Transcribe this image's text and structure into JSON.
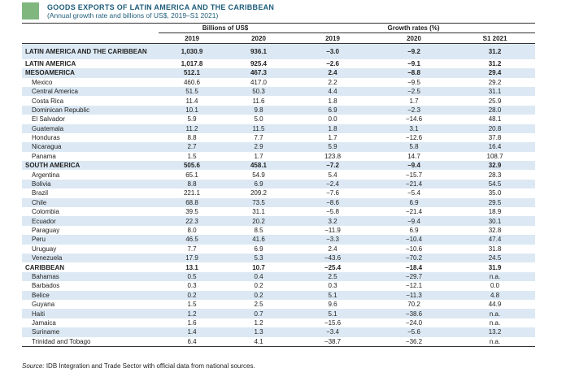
{
  "header": {
    "title": "GOODS EXPORTS OF LATIN AMERICA AND THE CARIBBEAN",
    "subtitle": "(Annual growth rate and billions of US$, 2019–S1 2021)"
  },
  "table": {
    "column_groups": [
      "Billions of US$",
      "Growth rates (%)"
    ],
    "columns": [
      "2019",
      "2020",
      "2019",
      "2020",
      "S1 2021"
    ],
    "rows": [
      {
        "cells": [
          "LATIN AMERICA AND THE CARIBBEAN",
          "1,030.9",
          "936.1",
          "−3.0",
          "−9.2",
          "31.2"
        ]
      },
      {
        "cells": [
          "LATIN AMERICA",
          "1,017.8",
          "925.4",
          "−2.6",
          "−9.1",
          "31.2"
        ]
      },
      {
        "cells": [
          "MESOAMERICA",
          "512.1",
          "467.3",
          "2.4",
          "−8.8",
          "29.4"
        ],
        "rows": [
          [
            "Mexico",
            "460.6",
            "417.0",
            "2.2",
            "−9.5",
            "29.2"
          ],
          [
            "Central America",
            "51.5",
            "50.3",
            "4.4",
            "−2.5",
            "31.1"
          ],
          [
            "Costa Rica",
            "11.4",
            "11.6",
            "1.8",
            "1.7",
            "25.9"
          ],
          [
            "Dominican Republic",
            "10.1",
            "9.8",
            "6.9",
            "−2.3",
            "28.0"
          ],
          [
            "El Salvador",
            "5.9",
            "5.0",
            "0.0",
            "−14.6",
            "48.1"
          ],
          [
            "Guatemala",
            "11.2",
            "11.5",
            "1.8",
            "3.1",
            "20.8"
          ],
          [
            "Honduras",
            "8.8",
            "7.7",
            "1.7",
            "−12.6",
            "37.8"
          ],
          [
            "Nicaragua",
            "2.7",
            "2.9",
            "5.9",
            "5.8",
            "16.4"
          ],
          [
            "Panama",
            "1.5",
            "1.7",
            "123.8",
            "14.7",
            "108.7"
          ]
        ]
      },
      {
        "cells": [
          "SOUTH AMERICA",
          "505.6",
          "458.1",
          "−7.2",
          "−9.4",
          "32.9"
        ],
        "rows": [
          [
            "Argentina",
            "65.1",
            "54.9",
            "5.4",
            "−15.7",
            "28.3"
          ],
          [
            "Bolivia",
            "8.8",
            "6.9",
            "−2.4",
            "−21.4",
            "54.5"
          ],
          [
            "Brazil",
            "221.1",
            "209.2",
            "−7.6",
            "−5.4",
            "35.0"
          ],
          [
            "Chile",
            "68.8",
            "73.5",
            "−8.6",
            "6.9",
            "29.5"
          ],
          [
            "Colombia",
            "39.5",
            "31.1",
            "−5.8",
            "−21.4",
            "18.9"
          ],
          [
            "Ecuador",
            "22.3",
            "20.2",
            "3.2",
            "−9.4",
            "30.1"
          ],
          [
            "Paraguay",
            "8.0",
            "8.5",
            "−11.9",
            "6.9",
            "32.8"
          ],
          [
            "Peru",
            "46.5",
            "41.6",
            "−3.3",
            "−10.4",
            "47.4"
          ],
          [
            "Uruguay",
            "7.7",
            "6.9",
            "2.4",
            "−10.6",
            "31.8"
          ],
          [
            "Venezuela",
            "17.9",
            "5.3",
            "−43.6",
            "−70.2",
            "24.5"
          ]
        ]
      },
      {
        "cells": [
          "CARIBBEAN",
          "13.1",
          "10.7",
          "−25.4",
          "−18.4",
          "31.9"
        ],
        "rows": [
          [
            "Bahamas",
            "0.5",
            "0.4",
            "2.5",
            "−29.7",
            "n.a."
          ],
          [
            "Barbados",
            "0.3",
            "0.2",
            "0.3",
            "−12.1",
            "0.0"
          ],
          [
            "Belice",
            "0.2",
            "0.2",
            "5.1",
            "−11.3",
            "4.8"
          ],
          [
            "Guyana",
            "1.5",
            "2.5",
            "9.6",
            "70.2",
            "44.9"
          ],
          [
            "Haiti",
            "1.2",
            "0.7",
            "5.1",
            "−38.6",
            "n.a."
          ],
          [
            "Jamaica",
            "1.6",
            "1.2",
            "−15.6",
            "−24.0",
            "n.a."
          ],
          [
            "Suriname",
            "1.4",
            "1.3",
            "−3.4",
            "−5.6",
            "13.2"
          ],
          [
            "Trinidad and Tobago",
            "6.4",
            "4.1",
            "−38.7",
            "−36.2",
            "n.a."
          ]
        ]
      }
    ]
  },
  "source": {
    "label": "Source:",
    "text": "IDB Integration and Trade Sector with official data from national sources."
  }
}
